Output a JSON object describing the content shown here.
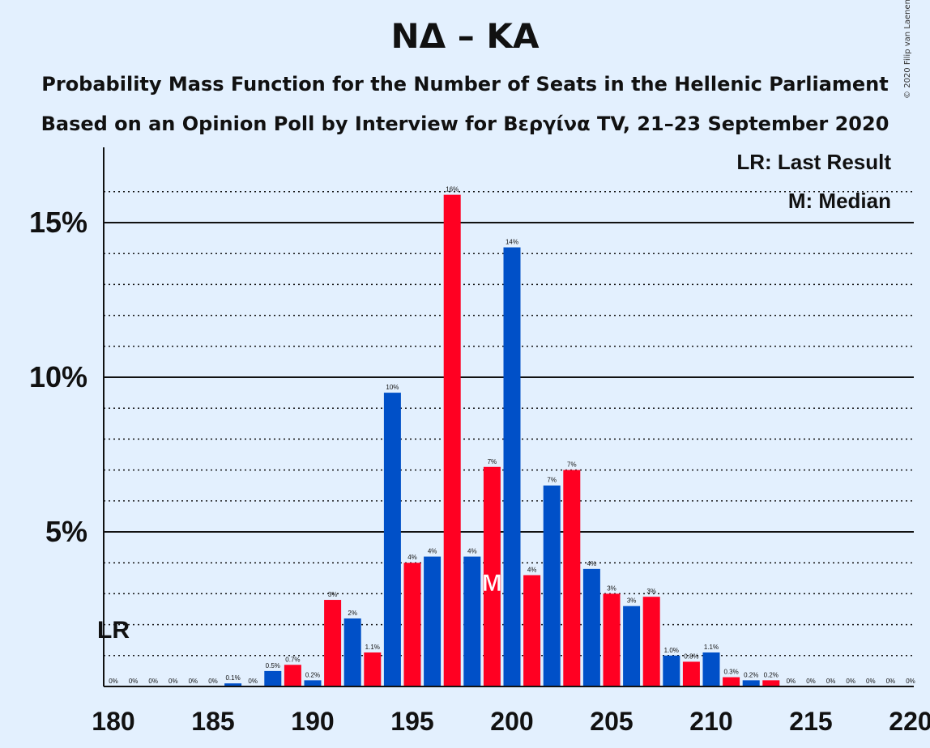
{
  "title": "ΝΔ – ΚΑ",
  "subtitle_1": "Probability Mass Function for the Number of Seats in the Hellenic Parliament",
  "subtitle_2": "Based on an Opinion Poll by Interview for Βεργίνα TV, 21–23 September 2020",
  "copyright": "© 2020 Filip van Laenen",
  "legend": {
    "last_result": "LR: Last Result",
    "median": "M: Median"
  },
  "markers": {
    "last_result_label": "LR",
    "last_result_seat": 180,
    "median_label": "M",
    "median_seat": 199
  },
  "colors": {
    "blue": "#0050c8",
    "red": "#ff0022",
    "background": "#e3f0fe"
  },
  "chart_data": {
    "type": "bar",
    "x_ticks": [
      180,
      185,
      190,
      195,
      200,
      205,
      210,
      215,
      220
    ],
    "x_tick_labels": [
      "180",
      "185",
      "190",
      "195",
      "200",
      "205",
      "210",
      "215",
      "220"
    ],
    "y_ticks": [
      5,
      10,
      15
    ],
    "y_tick_labels": [
      "5%",
      "10%",
      "15%"
    ],
    "ylim": [
      0,
      17
    ],
    "xlim": [
      180,
      220
    ],
    "grid": "dotted every 1%, solid every 5%",
    "legend_position": "top-right",
    "bars": [
      {
        "seat": 180,
        "value": 0,
        "label": "0%",
        "color": "blue"
      },
      {
        "seat": 181,
        "value": 0,
        "label": "0%",
        "color": "red"
      },
      {
        "seat": 182,
        "value": 0,
        "label": "0%",
        "color": "blue"
      },
      {
        "seat": 183,
        "value": 0,
        "label": "0%",
        "color": "red"
      },
      {
        "seat": 184,
        "value": 0,
        "label": "0%",
        "color": "blue"
      },
      {
        "seat": 185,
        "value": 0,
        "label": "0%",
        "color": "red"
      },
      {
        "seat": 186,
        "value": 0.1,
        "label": "0.1%",
        "color": "blue"
      },
      {
        "seat": 187,
        "value": 0,
        "label": "0%",
        "color": "red"
      },
      {
        "seat": 188,
        "value": 0.5,
        "label": "0.5%",
        "color": "blue"
      },
      {
        "seat": 189,
        "value": 0.7,
        "label": "0.7%",
        "color": "red"
      },
      {
        "seat": 190,
        "value": 0.2,
        "label": "0.2%",
        "color": "blue"
      },
      {
        "seat": 191,
        "value": 2.8,
        "label": "3%",
        "color": "red"
      },
      {
        "seat": 192,
        "value": 2.2,
        "label": "2%",
        "color": "blue"
      },
      {
        "seat": 193,
        "value": 1.1,
        "label": "1.1%",
        "color": "red"
      },
      {
        "seat": 194,
        "value": 9.5,
        "label": "10%",
        "color": "blue"
      },
      {
        "seat": 195,
        "value": 4.0,
        "label": "4%",
        "color": "red"
      },
      {
        "seat": 196,
        "value": 4.2,
        "label": "4%",
        "color": "blue"
      },
      {
        "seat": 197,
        "value": 15.9,
        "label": "16%",
        "color": "red"
      },
      {
        "seat": 198,
        "value": 4.2,
        "label": "4%",
        "color": "blue"
      },
      {
        "seat": 199,
        "value": 7.1,
        "label": "7%",
        "color": "red"
      },
      {
        "seat": 200,
        "value": 14.2,
        "label": "14%",
        "color": "blue"
      },
      {
        "seat": 201,
        "value": 3.6,
        "label": "4%",
        "color": "red"
      },
      {
        "seat": 202,
        "value": 6.5,
        "label": "7%",
        "color": "blue"
      },
      {
        "seat": 203,
        "value": 7.0,
        "label": "7%",
        "color": "red"
      },
      {
        "seat": 204,
        "value": 3.8,
        "label": "4%",
        "color": "blue"
      },
      {
        "seat": 205,
        "value": 3.0,
        "label": "3%",
        "color": "red"
      },
      {
        "seat": 206,
        "value": 2.6,
        "label": "3%",
        "color": "blue"
      },
      {
        "seat": 207,
        "value": 2.9,
        "label": "3%",
        "color": "red"
      },
      {
        "seat": 208,
        "value": 1.0,
        "label": "1.0%",
        "color": "blue"
      },
      {
        "seat": 209,
        "value": 0.8,
        "label": "0.8%",
        "color": "red"
      },
      {
        "seat": 210,
        "value": 1.1,
        "label": "1.1%",
        "color": "blue"
      },
      {
        "seat": 211,
        "value": 0.3,
        "label": "0.3%",
        "color": "red"
      },
      {
        "seat": 212,
        "value": 0.2,
        "label": "0.2%",
        "color": "blue"
      },
      {
        "seat": 213,
        "value": 0.2,
        "label": "0.2%",
        "color": "red"
      },
      {
        "seat": 214,
        "value": 0,
        "label": "0%",
        "color": "blue"
      },
      {
        "seat": 215,
        "value": 0,
        "label": "0%",
        "color": "red"
      },
      {
        "seat": 216,
        "value": 0,
        "label": "0%",
        "color": "blue"
      },
      {
        "seat": 217,
        "value": 0,
        "label": "0%",
        "color": "red"
      },
      {
        "seat": 218,
        "value": 0,
        "label": "0%",
        "color": "blue"
      },
      {
        "seat": 219,
        "value": 0,
        "label": "0%",
        "color": "red"
      },
      {
        "seat": 220,
        "value": 0,
        "label": "0%",
        "color": "blue"
      }
    ]
  }
}
